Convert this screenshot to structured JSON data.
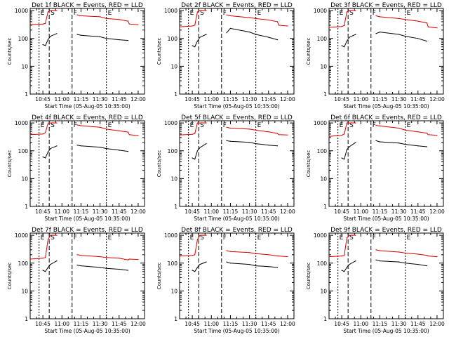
{
  "figure": {
    "time_ticks": [
      "10:45",
      "11:00",
      "11:15",
      "11:30",
      "11:45",
      "12:00"
    ],
    "y_ticks": [
      "1",
      "10",
      "100",
      "1000"
    ],
    "ylabel": "Counts/sec",
    "xlabel": "Start Time (05-Aug-05 10:35:00)",
    "markers": [
      "E",
      "S",
      "F",
      "E"
    ]
  },
  "colors": {
    "events": "#000000",
    "lld": "#d40000"
  },
  "chart_data": [
    {
      "type": "line",
      "title": "Det 1f BLACK = Events, RED = LLD",
      "xlabel": "Start Time (05-Aug-05 10:35:00)",
      "ylabel": "Counts/sec",
      "yscale": "log",
      "ylim": [
        1,
        1200
      ],
      "x_unit": "minutes after 10:35:00",
      "x": [
        0,
        10,
        12,
        14,
        16,
        21,
        28,
        35,
        37,
        40,
        55,
        60,
        70,
        77,
        78,
        85
      ],
      "series": [
        {
          "name": "Events",
          "color": "#000000",
          "values": [
            null,
            60,
            55,
            90,
            120,
            150,
            null,
            null,
            140,
            130,
            115,
            100,
            90,
            85,
            null,
            null
          ]
        },
        {
          "name": "LLD",
          "color": "#d40000",
          "values": [
            310,
            330,
            350,
            900,
            1000,
            1000,
            null,
            null,
            700,
            650,
            600,
            520,
            480,
            420,
            330,
            310
          ]
        }
      ]
    },
    {
      "type": "line",
      "title": "Det 2f BLACK = Events, RED = LLD",
      "xlabel": "Start Time (05-Aug-05 10:35:00)",
      "ylabel": "Counts/sec",
      "yscale": "log",
      "ylim": [
        1,
        1200
      ],
      "x_unit": "minutes after 10:35:00",
      "x": [
        0,
        10,
        12,
        14,
        16,
        21,
        28,
        35,
        37,
        40,
        55,
        60,
        70,
        77,
        78,
        85
      ],
      "series": [
        {
          "name": "Events",
          "color": "#000000",
          "values": [
            null,
            55,
            50,
            80,
            110,
            140,
            null,
            null,
            160,
            230,
            170,
            140,
            110,
            90,
            null,
            null
          ]
        },
        {
          "name": "LLD",
          "color": "#d40000",
          "values": [
            260,
            280,
            300,
            900,
            1000,
            1000,
            null,
            null,
            700,
            650,
            560,
            520,
            460,
            400,
            300,
            280
          ]
        }
      ]
    },
    {
      "type": "line",
      "title": "Det 3f BLACK = Events, RED = LLD",
      "xlabel": "Start Time (05-Aug-05 10:35:00)",
      "ylabel": "Counts/sec",
      "yscale": "log",
      "ylim": [
        1,
        1200
      ],
      "x_unit": "minutes after 10:35:00",
      "x": [
        0,
        10,
        12,
        14,
        16,
        21,
        28,
        35,
        37,
        40,
        55,
        60,
        70,
        77,
        78,
        85
      ],
      "series": [
        {
          "name": "Events",
          "color": "#000000",
          "values": [
            null,
            55,
            50,
            80,
            110,
            140,
            null,
            null,
            150,
            170,
            140,
            120,
            100,
            80,
            null,
            null
          ]
        },
        {
          "name": "LLD",
          "color": "#d40000",
          "values": [
            250,
            270,
            290,
            900,
            1000,
            1000,
            null,
            null,
            650,
            600,
            520,
            480,
            420,
            360,
            260,
            240
          ]
        }
      ]
    },
    {
      "type": "line",
      "title": "Det 4f BLACK = Events, RED = LLD",
      "xlabel": "Start Time (05-Aug-05 10:35:00)",
      "ylabel": "Counts/sec",
      "yscale": "log",
      "ylim": [
        1,
        1200
      ],
      "x_unit": "minutes after 10:35:00",
      "x": [
        0,
        10,
        12,
        14,
        16,
        21,
        28,
        35,
        37,
        40,
        55,
        60,
        70,
        77,
        78,
        85
      ],
      "series": [
        {
          "name": "Events",
          "color": "#000000",
          "values": [
            null,
            60,
            55,
            90,
            120,
            150,
            null,
            null,
            160,
            150,
            135,
            120,
            105,
            95,
            null,
            null
          ]
        },
        {
          "name": "LLD",
          "color": "#d40000",
          "values": [
            380,
            400,
            450,
            950,
            1000,
            1000,
            null,
            null,
            850,
            800,
            700,
            600,
            520,
            470,
            380,
            350
          ]
        }
      ]
    },
    {
      "type": "line",
      "title": "Det 5f BLACK = Events, RED = LLD",
      "xlabel": "Start Time (05-Aug-05 10:35:00)",
      "ylabel": "Counts/sec",
      "yscale": "log",
      "ylim": [
        1,
        1200
      ],
      "x_unit": "minutes after 10:35:00",
      "x": [
        0,
        10,
        12,
        14,
        16,
        21,
        28,
        35,
        37,
        40,
        55,
        60,
        70,
        77,
        78,
        85
      ],
      "series": [
        {
          "name": "Events",
          "color": "#000000",
          "values": [
            null,
            55,
            50,
            100,
            130,
            180,
            null,
            null,
            230,
            220,
            200,
            180,
            160,
            150,
            null,
            null
          ]
        },
        {
          "name": "LLD",
          "color": "#d40000",
          "values": [
            370,
            390,
            420,
            1000,
            1000,
            1000,
            null,
            null,
            700,
            650,
            600,
            550,
            480,
            420,
            380,
            370
          ]
        }
      ]
    },
    {
      "type": "line",
      "title": "Det 6f BLACK = Events, RED = LLD",
      "xlabel": "Start Time (05-Aug-05 10:35:00)",
      "ylabel": "Counts/sec",
      "yscale": "log",
      "ylim": [
        1,
        1200
      ],
      "x_unit": "minutes after 10:35:00",
      "x": [
        0,
        10,
        12,
        14,
        16,
        21,
        28,
        35,
        37,
        40,
        55,
        60,
        70,
        77,
        78,
        85
      ],
      "series": [
        {
          "name": "Events",
          "color": "#000000",
          "values": [
            null,
            55,
            50,
            110,
            140,
            200,
            null,
            null,
            230,
            210,
            190,
            170,
            150,
            140,
            null,
            null
          ]
        },
        {
          "name": "LLD",
          "color": "#d40000",
          "values": [
            330,
            360,
            400,
            1000,
            1000,
            1000,
            null,
            null,
            820,
            780,
            650,
            550,
            480,
            430,
            380,
            360
          ]
        }
      ]
    },
    {
      "type": "line",
      "title": "Det 7f BLACK = Events, RED = LLD",
      "xlabel": "Start Time (05-Aug-05 10:35:00)",
      "ylabel": "Counts/sec",
      "yscale": "log",
      "ylim": [
        1,
        1200
      ],
      "x_unit": "minutes after 10:35:00",
      "x": [
        0,
        10,
        12,
        14,
        16,
        21,
        28,
        35,
        37,
        40,
        55,
        60,
        70,
        77,
        78,
        85
      ],
      "series": [
        {
          "name": "Events",
          "color": "#000000",
          "values": [
            null,
            55,
            50,
            70,
            90,
            120,
            null,
            null,
            85,
            80,
            70,
            65,
            60,
            55,
            null,
            null
          ]
        },
        {
          "name": "LLD",
          "color": "#d40000",
          "values": [
            140,
            150,
            160,
            700,
            1000,
            1000,
            null,
            null,
            200,
            190,
            170,
            160,
            150,
            130,
            140,
            135
          ]
        }
      ]
    },
    {
      "type": "line",
      "title": "Det 8f BLACK = Events, RED = LLD",
      "xlabel": "Start Time (05-Aug-05 10:35:00)",
      "ylabel": "Counts/sec",
      "yscale": "log",
      "ylim": [
        1,
        1200
      ],
      "x_unit": "minutes after 10:35:00",
      "x": [
        0,
        10,
        12,
        14,
        16,
        21,
        28,
        35,
        37,
        40,
        55,
        60,
        70,
        77,
        78,
        85
      ],
      "series": [
        {
          "name": "Events",
          "color": "#000000",
          "values": [
            null,
            55,
            50,
            70,
            90,
            110,
            null,
            null,
            110,
            100,
            90,
            80,
            75,
            70,
            null,
            null
          ]
        },
        {
          "name": "LLD",
          "color": "#d40000",
          "values": [
            180,
            190,
            200,
            700,
            1000,
            1000,
            null,
            null,
            280,
            260,
            240,
            220,
            200,
            180,
            180,
            170
          ]
        }
      ]
    },
    {
      "type": "line",
      "title": "Det 9f BLACK = Events, RED = LLD",
      "xlabel": "Start Time (05-Aug-05 10:35:00)",
      "ylabel": "Counts/sec",
      "yscale": "log",
      "ylim": [
        1,
        1200
      ],
      "x_unit": "minutes after 10:35:00",
      "x": [
        0,
        10,
        12,
        14,
        16,
        21,
        28,
        35,
        37,
        40,
        55,
        60,
        70,
        77,
        78,
        85
      ],
      "series": [
        {
          "name": "Events",
          "color": "#000000",
          "values": [
            null,
            55,
            50,
            70,
            90,
            120,
            null,
            null,
            130,
            120,
            110,
            100,
            90,
            80,
            null,
            null
          ]
        },
        {
          "name": "LLD",
          "color": "#d40000",
          "values": [
            170,
            180,
            190,
            800,
            1000,
            1000,
            null,
            null,
            300,
            280,
            250,
            230,
            210,
            190,
            180,
            170
          ]
        }
      ]
    }
  ]
}
